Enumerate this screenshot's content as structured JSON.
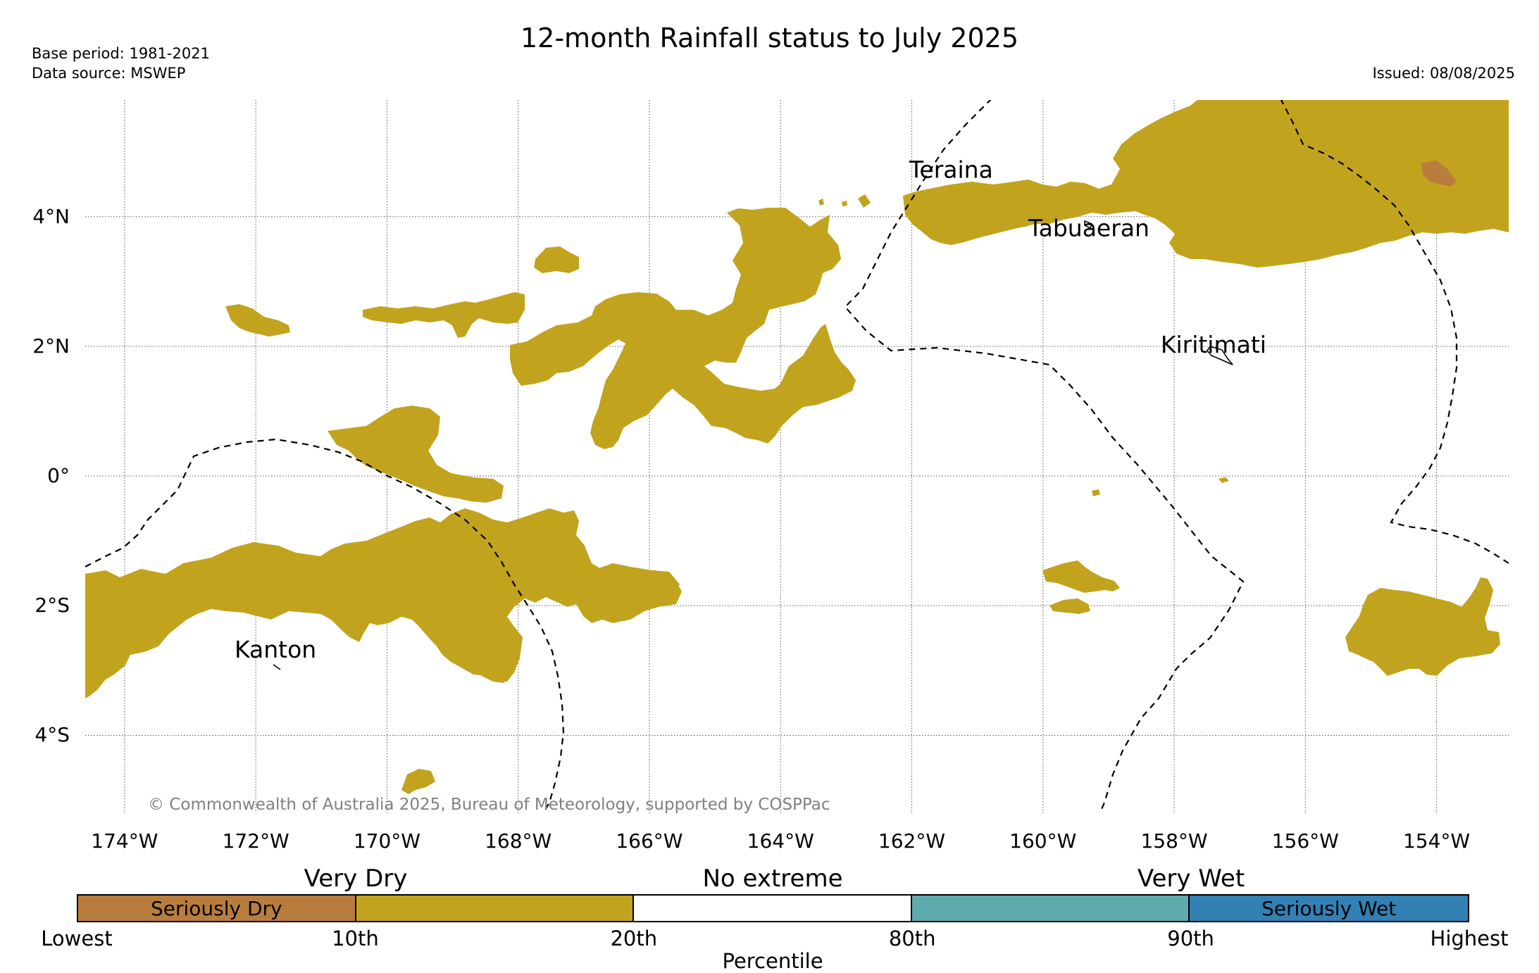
{
  "header": {
    "title": "12-month Rainfall status to July 2025",
    "base_period": "Base period: 1981-2021",
    "data_source": "Data source: MSWEP",
    "issued": "Issued: 08/08/2025"
  },
  "map": {
    "copyright": "© Commonwealth of Australia 2025, Bureau of Meteorology, supported by COSPPac",
    "places": [
      {
        "name": "Teraina",
        "lon": -161.4,
        "lat": 4.6
      },
      {
        "name": "Tabuaeran",
        "lon": -159.3,
        "lat": 3.7
      },
      {
        "name": "Kiritimati",
        "lon": -157.4,
        "lat": 1.9
      },
      {
        "name": "Kanton",
        "lon": -171.7,
        "lat": -2.8
      }
    ],
    "y_ticks": [
      {
        "label": "4°N",
        "lat": 4
      },
      {
        "label": "2°N",
        "lat": 2
      },
      {
        "label": "0°",
        "lat": 0
      },
      {
        "label": "2°S",
        "lat": -2
      },
      {
        "label": "4°S",
        "lat": -4
      }
    ],
    "x_ticks": [
      {
        "label": "174°W",
        "lon": -174
      },
      {
        "label": "172°W",
        "lon": -172
      },
      {
        "label": "170°W",
        "lon": -170
      },
      {
        "label": "168°W",
        "lon": -168
      },
      {
        "label": "166°W",
        "lon": -166
      },
      {
        "label": "164°W",
        "lon": -164
      },
      {
        "label": "162°W",
        "lon": -162
      },
      {
        "label": "160°W",
        "lon": -160
      },
      {
        "label": "158°W",
        "lon": -158
      },
      {
        "label": "156°W",
        "lon": -156
      },
      {
        "label": "154°W",
        "lon": -154
      }
    ],
    "lon_range": [
      -174.6,
      -152.9
    ],
    "lat_range": [
      -5.2,
      5.8
    ],
    "grid": true,
    "colors": {
      "very_dry": "#c2a31e",
      "seriously_dry": "#b87d3d",
      "very_wet": "#5faaad",
      "seriously_wet": "#3280b4"
    }
  },
  "legend": {
    "categories": {
      "very_dry": "Very Dry",
      "no_extreme": "No extreme",
      "very_wet": "Very Wet"
    },
    "segments": [
      {
        "label": "Seriously Dry",
        "color": "#b87d3d"
      },
      {
        "label": "",
        "color": "#c2a31e"
      },
      {
        "label": "",
        "color": "#ffffff"
      },
      {
        "label": "",
        "color": "#5faaad"
      },
      {
        "label": "Seriously Wet",
        "color": "#3280b4"
      }
    ],
    "percentiles": [
      "Lowest",
      "10th",
      "20th",
      "80th",
      "90th",
      "Highest"
    ],
    "xlabel": "Percentile"
  }
}
